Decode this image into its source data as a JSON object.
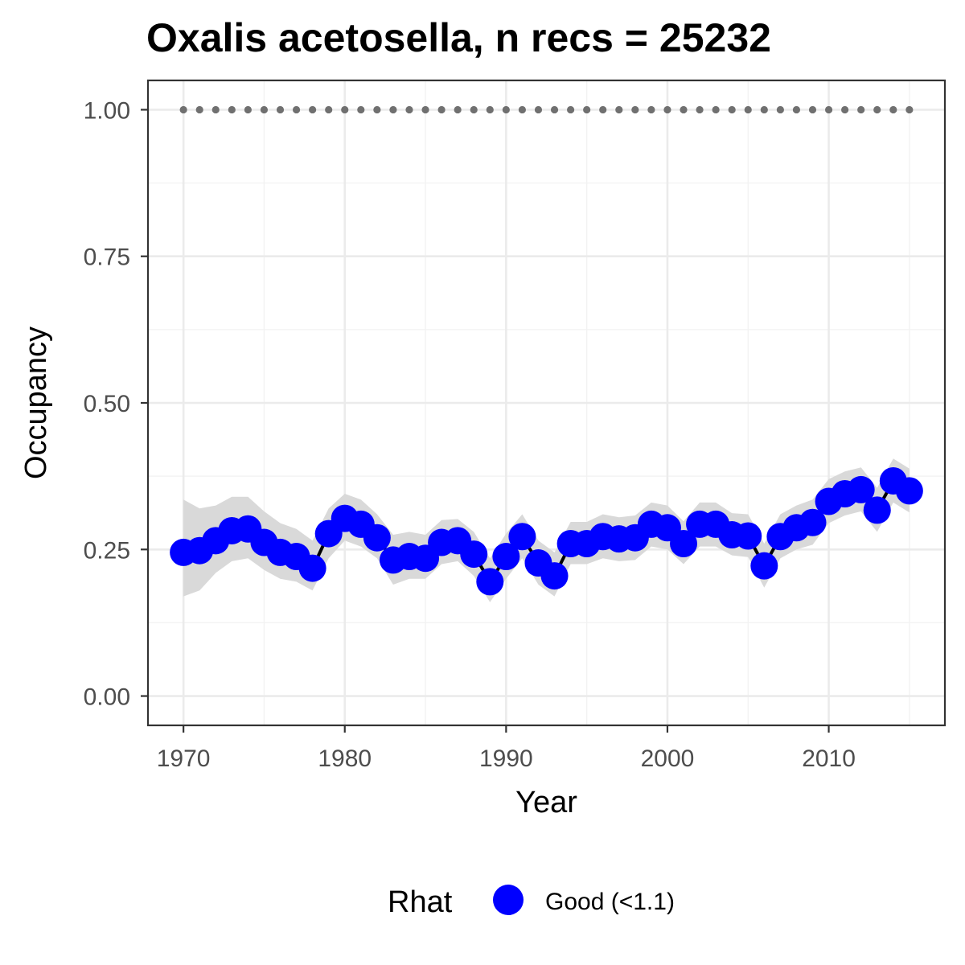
{
  "chart_data": {
    "type": "scatter",
    "title": "Oxalis acetosella, n recs = 25232",
    "xlabel": "Year",
    "ylabel": "Occupancy",
    "xlim": [
      1967.8,
      2017.2
    ],
    "ylim": [
      -0.05,
      1.05
    ],
    "x_ticks": [
      1970,
      1980,
      1990,
      2000,
      2010
    ],
    "x_tick_labels": [
      "1970",
      "1980",
      "1990",
      "2000",
      "2010"
    ],
    "y_ticks": [
      0,
      0.25,
      0.5,
      0.75,
      1.0
    ],
    "y_tick_labels": [
      "0.00",
      "0.25",
      "0.50",
      "0.75",
      "1.00"
    ],
    "grid": true,
    "legend": {
      "title": "Rhat",
      "position": "bottom",
      "entries": [
        {
          "label": "Good (<1.1)",
          "color": "#0000ff"
        }
      ]
    },
    "x": [
      1970,
      1971,
      1972,
      1973,
      1974,
      1975,
      1976,
      1977,
      1978,
      1979,
      1980,
      1981,
      1982,
      1983,
      1984,
      1985,
      1986,
      1987,
      1988,
      1989,
      1990,
      1991,
      1992,
      1993,
      1994,
      1995,
      1996,
      1997,
      1998,
      1999,
      2000,
      2001,
      2002,
      2003,
      2004,
      2005,
      2006,
      2007,
      2008,
      2009,
      2010,
      2011,
      2012,
      2013,
      2014,
      2015
    ],
    "series": [
      {
        "name": "Good (<1.1)",
        "color": "#0000ff",
        "values": [
          0.245,
          0.248,
          0.265,
          0.282,
          0.285,
          0.262,
          0.245,
          0.238,
          0.218,
          0.277,
          0.303,
          0.293,
          0.27,
          0.232,
          0.238,
          0.235,
          0.262,
          0.265,
          0.242,
          0.195,
          0.238,
          0.272,
          0.227,
          0.205,
          0.26,
          0.26,
          0.272,
          0.268,
          0.27,
          0.293,
          0.287,
          0.26,
          0.293,
          0.293,
          0.275,
          0.273,
          0.222,
          0.272,
          0.287,
          0.296,
          0.332,
          0.345,
          0.352,
          0.317,
          0.367,
          0.35
        ]
      }
    ],
    "ci_lower": [
      0.17,
      0.18,
      0.21,
      0.23,
      0.235,
      0.215,
      0.2,
      0.195,
      0.18,
      0.235,
      0.265,
      0.255,
      0.235,
      0.19,
      0.2,
      0.2,
      0.225,
      0.23,
      0.205,
      0.16,
      0.2,
      0.235,
      0.19,
      0.17,
      0.225,
      0.225,
      0.235,
      0.23,
      0.232,
      0.255,
      0.25,
      0.225,
      0.255,
      0.255,
      0.24,
      0.237,
      0.185,
      0.235,
      0.25,
      0.258,
      0.295,
      0.308,
      0.315,
      0.28,
      0.33,
      0.313
    ],
    "ci_upper": [
      0.335,
      0.32,
      0.325,
      0.34,
      0.34,
      0.315,
      0.295,
      0.285,
      0.265,
      0.32,
      0.345,
      0.335,
      0.31,
      0.275,
      0.28,
      0.275,
      0.3,
      0.302,
      0.28,
      0.235,
      0.277,
      0.31,
      0.265,
      0.245,
      0.297,
      0.297,
      0.31,
      0.305,
      0.308,
      0.33,
      0.325,
      0.298,
      0.33,
      0.33,
      0.312,
      0.31,
      0.26,
      0.31,
      0.325,
      0.335,
      0.37,
      0.383,
      0.39,
      0.355,
      0.405,
      0.388
    ],
    "reference_line": {
      "y": 1.0,
      "style": "dotted",
      "color": "#707070"
    }
  }
}
